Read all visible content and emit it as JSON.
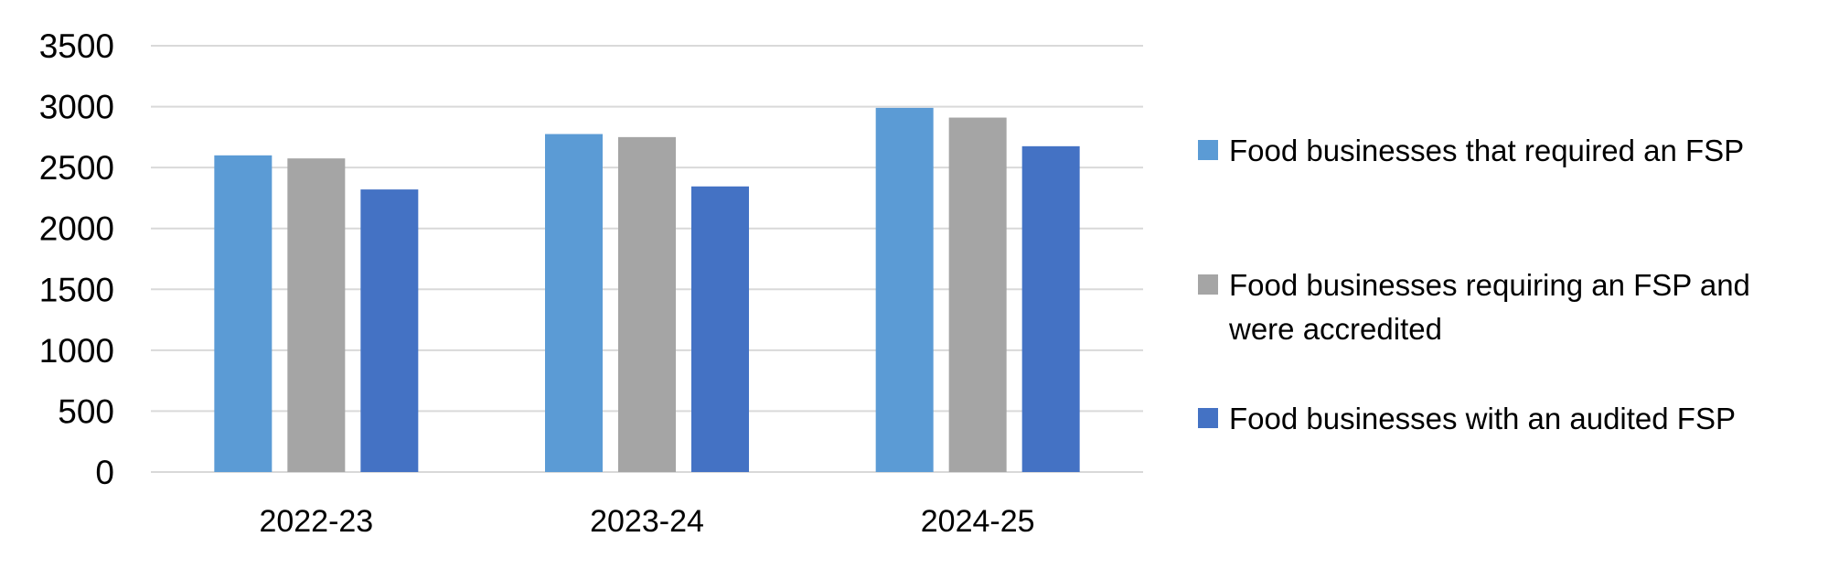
{
  "chart_data": {
    "type": "bar",
    "categories": [
      "2022-23",
      "2023-24",
      "2024-25"
    ],
    "series": [
      {
        "name": "Food businesses that required an FSP",
        "color": "#5B9BD5",
        "values": [
          2600,
          2775,
          2990
        ]
      },
      {
        "name": "Food businesses requiring an FSP and were accredited",
        "color": "#A5A5A5",
        "values": [
          2575,
          2750,
          2910
        ]
      },
      {
        "name": "Food businesses with an audited FSP",
        "color": "#4472C4",
        "values": [
          2320,
          2345,
          2675
        ]
      }
    ],
    "yticks": [
      "0",
      "500",
      "1000",
      "1500",
      "2000",
      "2500",
      "3000",
      "3500"
    ],
    "ylim": [
      0,
      3500
    ],
    "grid": true,
    "legend_position": "right",
    "title": "",
    "xlabel": "",
    "ylabel": ""
  }
}
